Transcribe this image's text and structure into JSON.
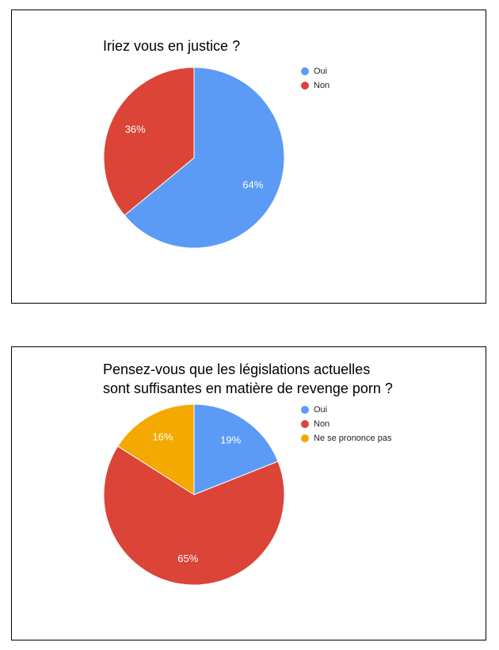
{
  "chart_data": [
    {
      "type": "pie",
      "title": "Iriez vous en justice ?",
      "categories": [
        "Oui",
        "Non"
      ],
      "values": [
        64,
        36
      ],
      "labels": [
        "64%",
        "36%"
      ],
      "colors": [
        "#5b9bf5",
        "#db4437"
      ],
      "start_angle": 0,
      "legend_position": "right"
    },
    {
      "type": "pie",
      "title": [
        "Pensez-vous que les législations actuelles",
        "sont suffisantes en matière de revenge porn ?"
      ],
      "categories": [
        "Oui",
        "Non",
        "Ne se prononce pas"
      ],
      "values": [
        19,
        65,
        16
      ],
      "labels": [
        "19%",
        "65%",
        "16%"
      ],
      "colors": [
        "#5b9bf5",
        "#db4437",
        "#f4a900"
      ],
      "start_angle": 0,
      "legend_position": "right"
    }
  ]
}
